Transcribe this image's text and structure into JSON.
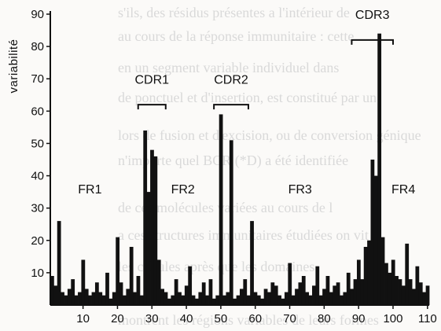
{
  "chart_data": {
    "type": "bar",
    "title": "",
    "xlabel": "",
    "ylabel": "variabilité",
    "xlim": [
      1,
      110
    ],
    "ylim": [
      0,
      90
    ],
    "x_ticks": [
      "10",
      "20",
      "30",
      "40",
      "50",
      "60",
      "70",
      "80",
      "90",
      "100",
      "110"
    ],
    "y_ticks": [
      "10",
      "20",
      "30",
      "40",
      "50",
      "60",
      "70",
      "80",
      "90"
    ],
    "grid": false,
    "legend": "none",
    "bar_color": "#111111",
    "regions": [
      {
        "label": "FR1"
      },
      {
        "label": "FR2"
      },
      {
        "label": "FR3"
      },
      {
        "label": "FR4"
      }
    ],
    "brackets": [
      {
        "label": "CDR1",
        "x_range": [
          26,
          34
        ]
      },
      {
        "label": "CDR2",
        "x_range": [
          48,
          58
        ]
      },
      {
        "label": "CDR3",
        "x_range": [
          88,
          100
        ]
      }
    ],
    "positions": [
      1,
      2,
      3,
      4,
      5,
      6,
      7,
      8,
      9,
      10,
      11,
      12,
      13,
      14,
      15,
      16,
      17,
      18,
      19,
      20,
      21,
      22,
      23,
      24,
      25,
      26,
      27,
      28,
      29,
      30,
      31,
      32,
      33,
      34,
      35,
      36,
      37,
      38,
      39,
      40,
      41,
      42,
      43,
      44,
      45,
      46,
      47,
      48,
      49,
      50,
      51,
      52,
      53,
      54,
      55,
      56,
      57,
      58,
      59,
      60,
      61,
      62,
      63,
      64,
      65,
      66,
      67,
      68,
      69,
      70,
      71,
      72,
      73,
      74,
      75,
      76,
      77,
      78,
      79,
      80,
      81,
      82,
      83,
      84,
      85,
      86,
      87,
      88,
      89,
      90,
      91,
      92,
      93,
      94,
      95,
      96,
      97,
      98,
      99,
      100,
      101,
      102,
      103,
      104,
      105,
      106,
      107,
      108,
      109,
      110
    ],
    "values": [
      9,
      6,
      26,
      4,
      3,
      5,
      8,
      3,
      4,
      14,
      5,
      3,
      4,
      7,
      4,
      3,
      10,
      2,
      4,
      21,
      7,
      3,
      5,
      18,
      4,
      9,
      3,
      54,
      35,
      48,
      46,
      14,
      5,
      4,
      2,
      3,
      8,
      4,
      3,
      6,
      12,
      3,
      2,
      4,
      7,
      3,
      8,
      2,
      3,
      59,
      3,
      4,
      51,
      2,
      3,
      5,
      8,
      3,
      26,
      4,
      3,
      2,
      5,
      4,
      7,
      6,
      3,
      2,
      4,
      13,
      3,
      5,
      7,
      9,
      4,
      3,
      6,
      12,
      3,
      5,
      9,
      4,
      6,
      7,
      3,
      4,
      10,
      5,
      8,
      14,
      8,
      18,
      20,
      45,
      40,
      84,
      21,
      13,
      10,
      14,
      9,
      8,
      6,
      19,
      8,
      5,
      12,
      7,
      4,
      6
    ]
  },
  "annotations": {
    "bg_lines": [
      "s'ils, des résidus présentes a l'intérieur de",
      "au cours de la réponse immunitaire : cette",
      "en un segment variable individuel dans",
      "de ponctuel et d'insertion, est constitué par un",
      "lors de fusion et d'excision, ou de conversion génique",
      "n'importe quel BCR (*D) a été identifiée",
      "de ces molécules variées au cours de l",
      "a ces structures immunitaires étudiées on vit",
      "les cellules après que les domaines",
      "montrent les régions variables de leurs formes"
    ]
  }
}
